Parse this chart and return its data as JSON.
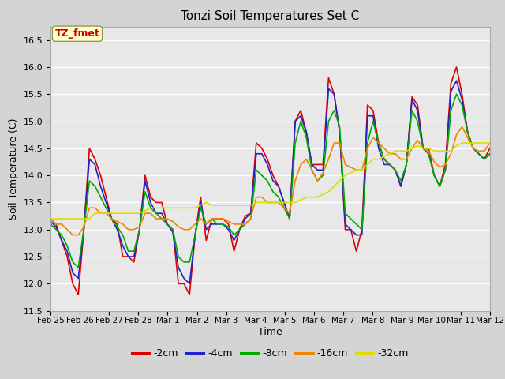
{
  "title": "Tonzi Soil Temperatures Set C",
  "xlabel": "Time",
  "ylabel": "Soil Temperature (C)",
  "ylim": [
    11.5,
    16.75
  ],
  "fig_facecolor": "#d4d4d4",
  "plot_bg_color": "#e8e8e8",
  "annotation_text": "TZ_fmet",
  "annotation_bg": "#ffffcc",
  "annotation_border": "#999944",
  "annotation_color": "#cc0000",
  "series_colors": {
    "-2cm": "#dd0000",
    "-4cm": "#2222cc",
    "-8cm": "#00aa00",
    "-16cm": "#ee8800",
    "-32cm": "#dddd00"
  },
  "legend_labels": [
    "-2cm",
    "-4cm",
    "-8cm",
    "-16cm",
    "-32cm"
  ],
  "x_tick_labels": [
    "Feb 25",
    "Feb 26",
    "Feb 27",
    "Feb 28",
    "Mar 1",
    "Mar 2",
    "Mar 3",
    "Mar 4",
    "Mar 5",
    "Mar 6",
    "Mar 7",
    "Mar 8",
    "Mar 9",
    "Mar 10",
    "Mar 11",
    "Mar 12"
  ],
  "yticks": [
    11.5,
    12.0,
    12.5,
    13.0,
    13.5,
    14.0,
    14.5,
    15.0,
    15.5,
    16.0,
    16.5
  ],
  "data": {
    "-2cm": [
      13.2,
      13.1,
      12.8,
      12.5,
      12.0,
      11.8,
      13.0,
      14.5,
      14.3,
      14.0,
      13.6,
      13.2,
      13.1,
      12.5,
      12.5,
      12.4,
      13.0,
      14.0,
      13.6,
      13.5,
      13.5,
      13.1,
      13.0,
      12.0,
      12.0,
      11.8,
      12.9,
      13.6,
      12.8,
      13.2,
      13.2,
      13.2,
      13.1,
      12.6,
      13.0,
      13.25,
      13.3,
      14.6,
      14.5,
      14.3,
      14.0,
      13.8,
      13.5,
      13.2,
      15.0,
      15.2,
      14.8,
      14.2,
      14.2,
      14.2,
      15.8,
      15.5,
      14.8,
      13.0,
      13.0,
      12.6,
      13.0,
      15.3,
      15.2,
      14.6,
      14.3,
      14.2,
      14.1,
      13.8,
      14.2,
      15.45,
      15.3,
      14.5,
      14.5,
      14.0,
      13.8,
      14.2,
      15.7,
      16.0,
      15.5,
      14.8,
      14.5,
      14.4,
      14.3,
      14.5
    ],
    "-4cm": [
      13.15,
      13.05,
      12.8,
      12.6,
      12.2,
      12.1,
      13.0,
      14.3,
      14.2,
      13.8,
      13.5,
      13.2,
      13.0,
      12.7,
      12.5,
      12.5,
      13.0,
      13.9,
      13.5,
      13.3,
      13.3,
      13.1,
      12.95,
      12.3,
      12.1,
      12.0,
      12.9,
      13.5,
      13.0,
      13.1,
      13.1,
      13.1,
      13.0,
      12.8,
      13.0,
      13.2,
      13.3,
      14.4,
      14.4,
      14.2,
      13.9,
      13.8,
      13.5,
      13.2,
      15.0,
      15.1,
      14.8,
      14.2,
      14.1,
      14.1,
      15.6,
      15.5,
      14.8,
      13.1,
      13.0,
      12.9,
      12.9,
      15.1,
      15.1,
      14.5,
      14.2,
      14.2,
      14.1,
      13.8,
      14.2,
      15.4,
      15.2,
      14.5,
      14.4,
      14.0,
      13.8,
      14.1,
      15.55,
      15.75,
      15.4,
      14.8,
      14.5,
      14.4,
      14.3,
      14.4
    ],
    "-8cm": [
      13.1,
      13.0,
      12.9,
      12.7,
      12.4,
      12.3,
      13.0,
      13.9,
      13.8,
      13.6,
      13.4,
      13.2,
      13.05,
      12.9,
      12.6,
      12.6,
      13.0,
      13.7,
      13.4,
      13.3,
      13.2,
      13.1,
      13.0,
      12.5,
      12.4,
      12.4,
      12.9,
      13.4,
      13.1,
      13.2,
      13.1,
      13.1,
      13.05,
      12.9,
      13.0,
      13.1,
      13.2,
      14.1,
      14.0,
      13.9,
      13.7,
      13.6,
      13.4,
      13.2,
      14.6,
      15.0,
      14.7,
      14.1,
      13.9,
      14.0,
      15.0,
      15.2,
      14.9,
      13.3,
      13.2,
      13.1,
      13.0,
      14.6,
      15.0,
      14.6,
      14.3,
      14.2,
      14.1,
      13.9,
      14.2,
      15.2,
      15.0,
      14.5,
      14.4,
      14.0,
      13.8,
      14.1,
      15.2,
      15.5,
      15.3,
      14.8,
      14.5,
      14.4,
      14.3,
      14.4
    ],
    "-16cm": [
      13.2,
      13.1,
      13.1,
      13.0,
      12.9,
      12.9,
      13.05,
      13.4,
      13.4,
      13.3,
      13.3,
      13.2,
      13.15,
      13.1,
      13.0,
      13.0,
      13.05,
      13.3,
      13.3,
      13.2,
      13.2,
      13.2,
      13.15,
      13.05,
      13.0,
      13.0,
      13.1,
      13.2,
      13.1,
      13.2,
      13.2,
      13.2,
      13.15,
      13.1,
      13.1,
      13.1,
      13.2,
      13.6,
      13.6,
      13.5,
      13.5,
      13.5,
      13.4,
      13.3,
      13.9,
      14.2,
      14.3,
      14.1,
      13.9,
      14.05,
      14.3,
      14.6,
      14.6,
      14.2,
      14.15,
      14.1,
      14.1,
      14.5,
      14.7,
      14.6,
      14.5,
      14.4,
      14.4,
      14.3,
      14.3,
      14.5,
      14.65,
      14.5,
      14.45,
      14.25,
      14.15,
      14.2,
      14.4,
      14.75,
      14.9,
      14.7,
      14.5,
      14.45,
      14.45,
      14.6
    ],
    "-32cm": [
      13.2,
      13.2,
      13.2,
      13.2,
      13.2,
      13.2,
      13.2,
      13.2,
      13.3,
      13.3,
      13.3,
      13.3,
      13.3,
      13.3,
      13.3,
      13.3,
      13.3,
      13.35,
      13.4,
      13.4,
      13.4,
      13.4,
      13.4,
      13.4,
      13.4,
      13.4,
      13.4,
      13.45,
      13.5,
      13.45,
      13.45,
      13.45,
      13.45,
      13.45,
      13.45,
      13.45,
      13.45,
      13.5,
      13.5,
      13.5,
      13.5,
      13.5,
      13.5,
      13.5,
      13.5,
      13.55,
      13.6,
      13.6,
      13.6,
      13.65,
      13.7,
      13.8,
      13.9,
      14.0,
      14.05,
      14.1,
      14.1,
      14.2,
      14.3,
      14.3,
      14.35,
      14.4,
      14.45,
      14.45,
      14.45,
      14.5,
      14.55,
      14.5,
      14.5,
      14.45,
      14.45,
      14.45,
      14.45,
      14.55,
      14.6,
      14.6,
      14.6,
      14.6,
      14.6,
      14.6
    ]
  }
}
